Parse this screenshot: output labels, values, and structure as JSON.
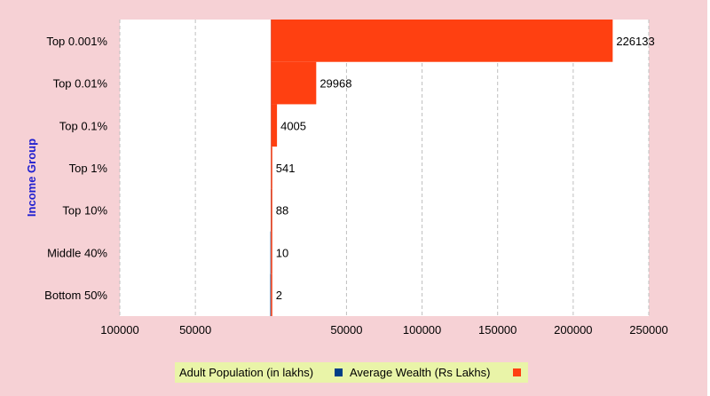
{
  "chart_data": {
    "type": "bar",
    "orientation": "horizontal",
    "layout": "butterfly",
    "ylabel": "Income Group",
    "categories": [
      "Top 0.001%",
      "Top 0.01%",
      "Top 0.1%",
      "Top 1%",
      "Top 10%",
      "Middle 40%",
      "Bottom 50%"
    ],
    "x_tick_labels": [
      "100000",
      "50000",
      "",
      "50000",
      "100000",
      "150000",
      "200000",
      "250000"
    ],
    "x_range": [
      -100000,
      250000
    ],
    "grid": "vertical",
    "legend_position": "bottom",
    "series": [
      {
        "name": "Adult Population (in lakhs)",
        "side": "left",
        "color": "#003f87",
        "values": [
          0.009,
          0.09,
          0.9,
          9,
          90,
          360,
          450
        ]
      },
      {
        "name": "Average Wealth (Rs Lakhs)",
        "side": "right",
        "color": "#ff4011",
        "values": [
          226133,
          29968,
          4005,
          541,
          88,
          10,
          2
        ],
        "data_labels": [
          "226133",
          "29968",
          "4005",
          "541",
          "88",
          "10",
          "2"
        ]
      }
    ]
  },
  "colors": {
    "frame_background": "#f6d1d5",
    "plot_background": "#ffffff",
    "legend_background": "#e9f4a8",
    "axis_title": "#1f1fd0"
  }
}
